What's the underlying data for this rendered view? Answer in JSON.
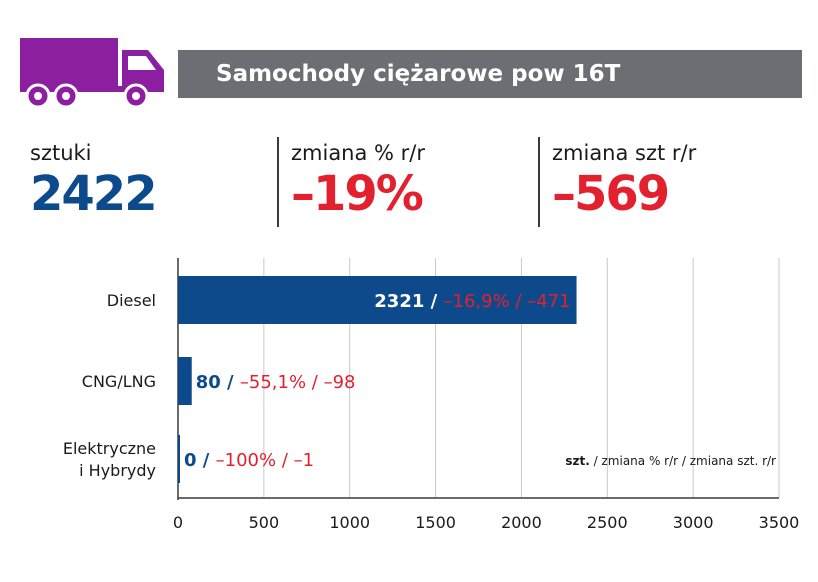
{
  "header": {
    "title": "Samochody ciężarowe pow 16T",
    "icon": "truck-icon",
    "icon_color": "#8b1fa0"
  },
  "kpis": [
    {
      "label": "sztuki",
      "value": "2422",
      "color": "#0d4a8c"
    },
    {
      "label": "zmiana % r/r",
      "value": "–19%",
      "color": "#e3202e"
    },
    {
      "label": "zmiana szt r/r",
      "value": "–569",
      "color": "#e3202e"
    }
  ],
  "chart_data": {
    "type": "bar",
    "orientation": "horizontal",
    "categories": [
      "Diesel",
      "CNG/LNG",
      "Elektryczne\ni Hybrydy"
    ],
    "values": [
      2321,
      80,
      0
    ],
    "value_labels": [
      "2321 / ",
      "80 / ",
      "0 / "
    ],
    "change_labels": [
      "–16,9% / –471",
      "–55,1% / –98",
      "–100% / –1"
    ],
    "xlim": [
      0,
      3500
    ],
    "x_ticks": [
      "0",
      "500",
      "1000",
      "1500",
      "2000",
      "2500",
      "3000",
      "3500"
    ],
    "grid": true,
    "bar_color": "#0d4a8c",
    "change_color": "#e3202e",
    "legend_note": {
      "bold": "szt.",
      "rest": " / zmiana % r/r / zmiana szt. r/r"
    }
  }
}
